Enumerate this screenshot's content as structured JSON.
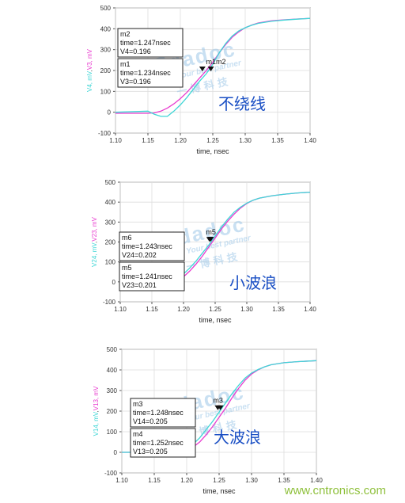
{
  "colors": {
    "series_a": "#e83ccf",
    "series_b": "#3fd6d6",
    "axis": "#555555",
    "grid": "#dddddd",
    "annotation_text": "#1a4fc4",
    "watermark": "#9ec8e8",
    "footer": "#8fc03c"
  },
  "watermark": {
    "brand": "Edadoc",
    "slogan": "Your best partner",
    "cn": "一 博 科 技"
  },
  "footer": {
    "site": "www.cntronics.com"
  },
  "chart_data": [
    {
      "type": "line",
      "xlabel": "time, nsec",
      "ylabel_parts": [
        {
          "text": "V4, mV",
          "series": "b"
        },
        {
          "text": ",",
          "series": "none"
        },
        {
          "text": "V3, mV",
          "series": "a"
        }
      ],
      "xlim": [
        1.1,
        1.4
      ],
      "ylim": [
        -100,
        500
      ],
      "xticks": [
        "1.10",
        "1.15",
        "1.20",
        "1.25",
        "1.30",
        "1.35",
        "1.40"
      ],
      "yticks": [
        "-100",
        "0",
        "100",
        "200",
        "300",
        "400",
        "500"
      ],
      "grid": true,
      "annotation": "不绕线",
      "marker_label": "m1m2",
      "series": [
        {
          "key": "a",
          "x": [
            1.1,
            1.15,
            1.16,
            1.17,
            1.18,
            1.19,
            1.2,
            1.21,
            1.22,
            1.23,
            1.24,
            1.25,
            1.26,
            1.27,
            1.28,
            1.29,
            1.3,
            1.31,
            1.32,
            1.34,
            1.36,
            1.38,
            1.4
          ],
          "y": [
            -5,
            -5,
            -3,
            5,
            20,
            40,
            65,
            95,
            130,
            165,
            200,
            240,
            285,
            325,
            360,
            385,
            405,
            418,
            428,
            438,
            443,
            447,
            450
          ]
        },
        {
          "key": "b",
          "x": [
            1.1,
            1.15,
            1.16,
            1.17,
            1.18,
            1.19,
            1.2,
            1.21,
            1.22,
            1.23,
            1.24,
            1.25,
            1.26,
            1.27,
            1.28,
            1.29,
            1.3,
            1.31,
            1.32,
            1.34,
            1.36,
            1.38,
            1.4
          ],
          "y": [
            0,
            5,
            -10,
            -20,
            -20,
            5,
            35,
            70,
            110,
            150,
            185,
            230,
            285,
            330,
            365,
            390,
            405,
            417,
            426,
            436,
            442,
            446,
            450
          ]
        }
      ],
      "markers": [
        {
          "name": "m2",
          "line1": "time=1.247nsec",
          "line2": "V4=0.196",
          "x": 1.247,
          "y": 196
        },
        {
          "name": "m1",
          "line1": "time=1.234nsec",
          "line2": "V3=0.196",
          "x": 1.234,
          "y": 196
        }
      ]
    },
    {
      "type": "line",
      "xlabel": "time, nsec",
      "ylabel_parts": [
        {
          "text": "V24, mV",
          "series": "b"
        },
        {
          "text": ",",
          "series": "none"
        },
        {
          "text": "V23, mV",
          "series": "a"
        }
      ],
      "xlim": [
        1.1,
        1.4
      ],
      "ylim": [
        -100,
        500
      ],
      "xticks": [
        "1.10",
        "1.15",
        "1.20",
        "1.25",
        "1.30",
        "1.35",
        "1.40"
      ],
      "yticks": [
        "-100",
        "0",
        "100",
        "200",
        "300",
        "400",
        "500"
      ],
      "grid": true,
      "annotation": "小波浪",
      "marker_label": "m5",
      "series": [
        {
          "key": "a",
          "x": [
            1.1,
            1.15,
            1.17,
            1.19,
            1.2,
            1.21,
            1.22,
            1.23,
            1.24,
            1.25,
            1.26,
            1.27,
            1.28,
            1.29,
            1.3,
            1.31,
            1.32,
            1.34,
            1.36,
            1.38,
            1.4
          ],
          "y": [
            0,
            0,
            0,
            10,
            25,
            55,
            90,
            130,
            175,
            220,
            265,
            305,
            340,
            370,
            393,
            410,
            420,
            432,
            440,
            446,
            450
          ]
        },
        {
          "key": "b",
          "x": [
            1.1,
            1.15,
            1.17,
            1.19,
            1.2,
            1.21,
            1.22,
            1.23,
            1.24,
            1.25,
            1.26,
            1.27,
            1.28,
            1.29,
            1.3,
            1.31,
            1.32,
            1.34,
            1.36,
            1.38,
            1.4
          ],
          "y": [
            0,
            0,
            5,
            20,
            40,
            70,
            105,
            145,
            185,
            230,
            275,
            315,
            350,
            375,
            395,
            410,
            420,
            432,
            440,
            446,
            450
          ]
        }
      ],
      "markers": [
        {
          "name": "m6",
          "line1": "time=1.243nsec",
          "line2": "V24=0.202",
          "x": 1.243,
          "y": 202
        },
        {
          "name": "m5",
          "line1": "time=1.241nsec",
          "line2": "V23=0.201",
          "x": 1.241,
          "y": 201
        }
      ]
    },
    {
      "type": "line",
      "xlabel": "time, nsec",
      "ylabel_parts": [
        {
          "text": "V14, mV",
          "series": "b"
        },
        {
          "text": ",",
          "series": "none"
        },
        {
          "text": "V13, mV",
          "series": "a"
        }
      ],
      "xlim": [
        1.1,
        1.4
      ],
      "ylim": [
        -100,
        500
      ],
      "xticks": [
        "1.10",
        "1.15",
        "1.20",
        "1.25",
        "1.30",
        "1.35",
        "1.40"
      ],
      "yticks": [
        "-100",
        "0",
        "100",
        "200",
        "300",
        "400",
        "500"
      ],
      "grid": true,
      "annotation": "大波浪",
      "marker_label": "m3",
      "series": [
        {
          "key": "a",
          "x": [
            1.1,
            1.15,
            1.18,
            1.2,
            1.21,
            1.22,
            1.23,
            1.24,
            1.25,
            1.26,
            1.27,
            1.28,
            1.29,
            1.3,
            1.31,
            1.32,
            1.33,
            1.35,
            1.37,
            1.4
          ],
          "y": [
            0,
            0,
            0,
            10,
            25,
            50,
            85,
            125,
            170,
            215,
            265,
            310,
            350,
            380,
            400,
            415,
            425,
            435,
            440,
            445
          ]
        },
        {
          "key": "b",
          "x": [
            1.1,
            1.15,
            1.18,
            1.2,
            1.21,
            1.22,
            1.23,
            1.24,
            1.25,
            1.26,
            1.27,
            1.28,
            1.29,
            1.3,
            1.31,
            1.32,
            1.33,
            1.35,
            1.37,
            1.4
          ],
          "y": [
            0,
            0,
            5,
            20,
            40,
            70,
            110,
            150,
            195,
            240,
            285,
            325,
            360,
            385,
            402,
            415,
            425,
            435,
            440,
            445
          ]
        }
      ],
      "markers": [
        {
          "name": "m3",
          "line1": "time=1.248nsec",
          "line2": "V14=0.205",
          "x": 1.248,
          "y": 205
        },
        {
          "name": "m4",
          "line1": "time=1.252nsec",
          "line2": "V13=0.205",
          "x": 1.252,
          "y": 205
        }
      ]
    }
  ]
}
